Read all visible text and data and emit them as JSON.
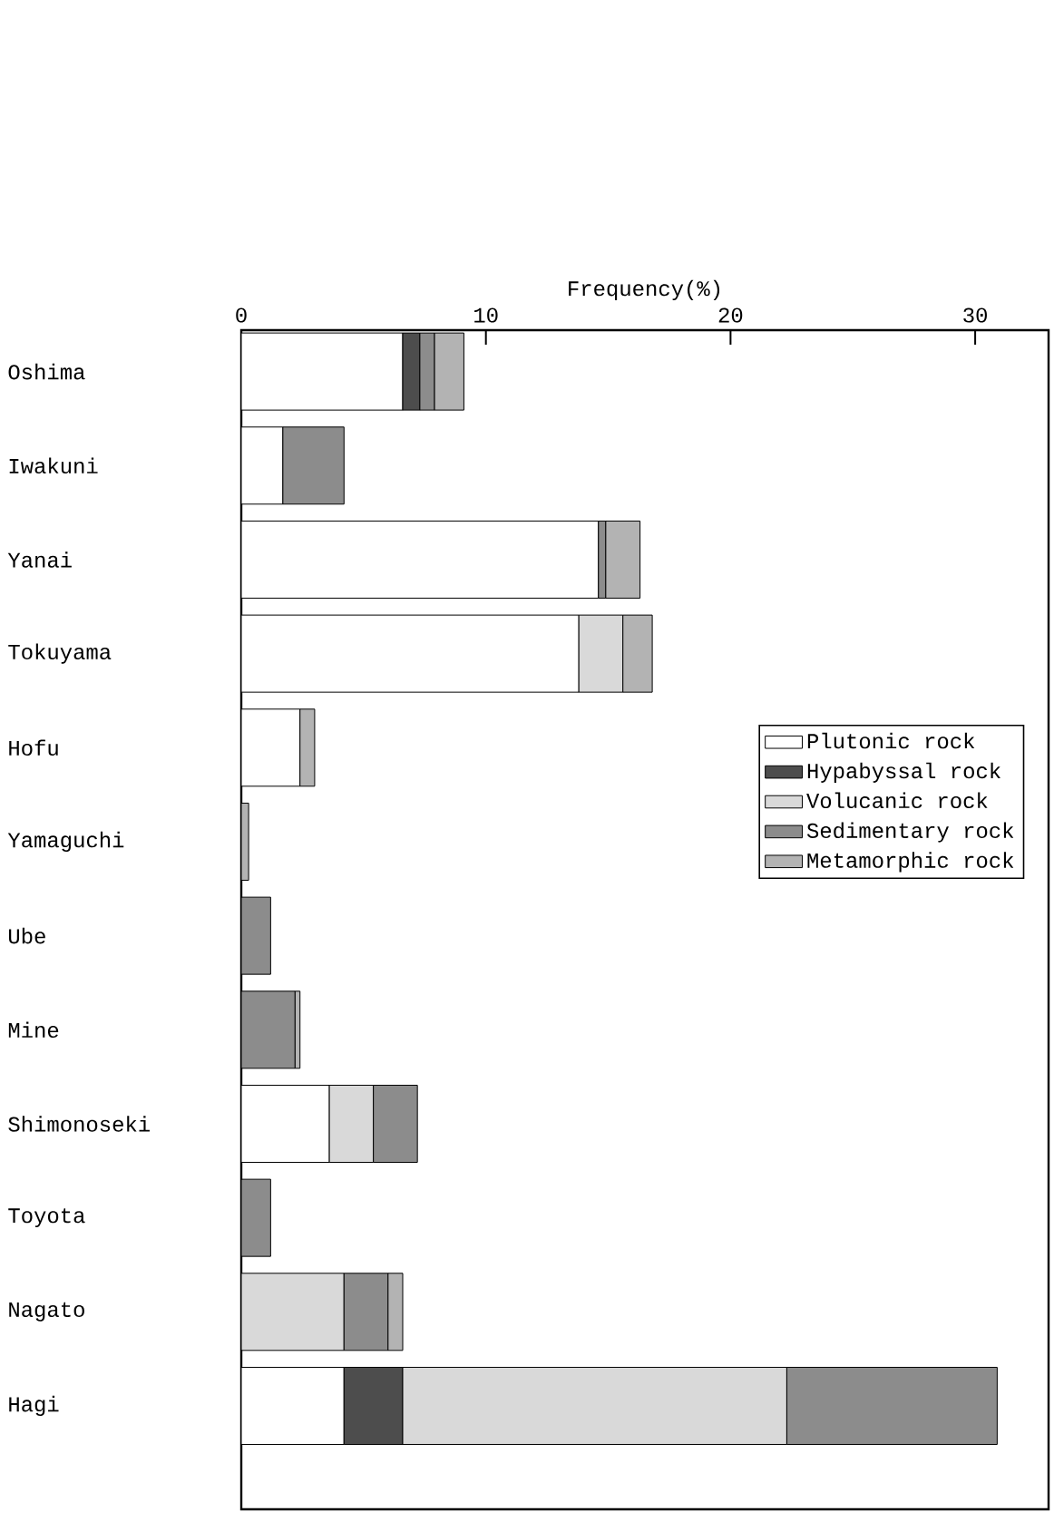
{
  "chart_data": {
    "type": "bar",
    "orientation": "horizontal",
    "stacked": true,
    "xlabel": "Frequency(%)",
    "xlim": [
      0,
      33
    ],
    "xticks": [
      0,
      10,
      20,
      30
    ],
    "categories": [
      "Oshima",
      "Iwakuni",
      "Yanai",
      "Tokuyama",
      "Hofu",
      "Yamaguchi",
      "Ube",
      "Mine",
      "Shimonoseki",
      "Toyota",
      "Nagato",
      "Hagi"
    ],
    "series": [
      {
        "name": "Plutonic rock",
        "color": "#ffffff",
        "values": [
          6.6,
          1.7,
          14.6,
          13.8,
          2.4,
          null,
          null,
          null,
          3.6,
          null,
          null,
          4.2
        ]
      },
      {
        "name": "Hypabyssal rock",
        "color": "#4d4d4d",
        "values": [
          0.7,
          null,
          null,
          null,
          null,
          null,
          null,
          null,
          null,
          null,
          null,
          2.4
        ]
      },
      {
        "name": "Volucanic rock",
        "color": "#d9d9d9",
        "values": [
          null,
          null,
          null,
          1.8,
          null,
          null,
          null,
          null,
          1.8,
          null,
          4.2,
          15.7
        ]
      },
      {
        "name": "Sedimentary rock",
        "color": "#8c8c8c",
        "values": [
          0.6,
          2.5,
          0.3,
          null,
          null,
          null,
          1.2,
          2.2,
          1.8,
          1.2,
          1.8,
          8.6
        ]
      },
      {
        "name": "Metamorphic rock",
        "color": "#b3b3b3",
        "values": [
          1.2,
          null,
          1.4,
          1.2,
          0.6,
          0.3,
          null,
          0.2,
          null,
          null,
          0.6,
          null
        ]
      }
    ],
    "legend": "right",
    "grid": false
  }
}
